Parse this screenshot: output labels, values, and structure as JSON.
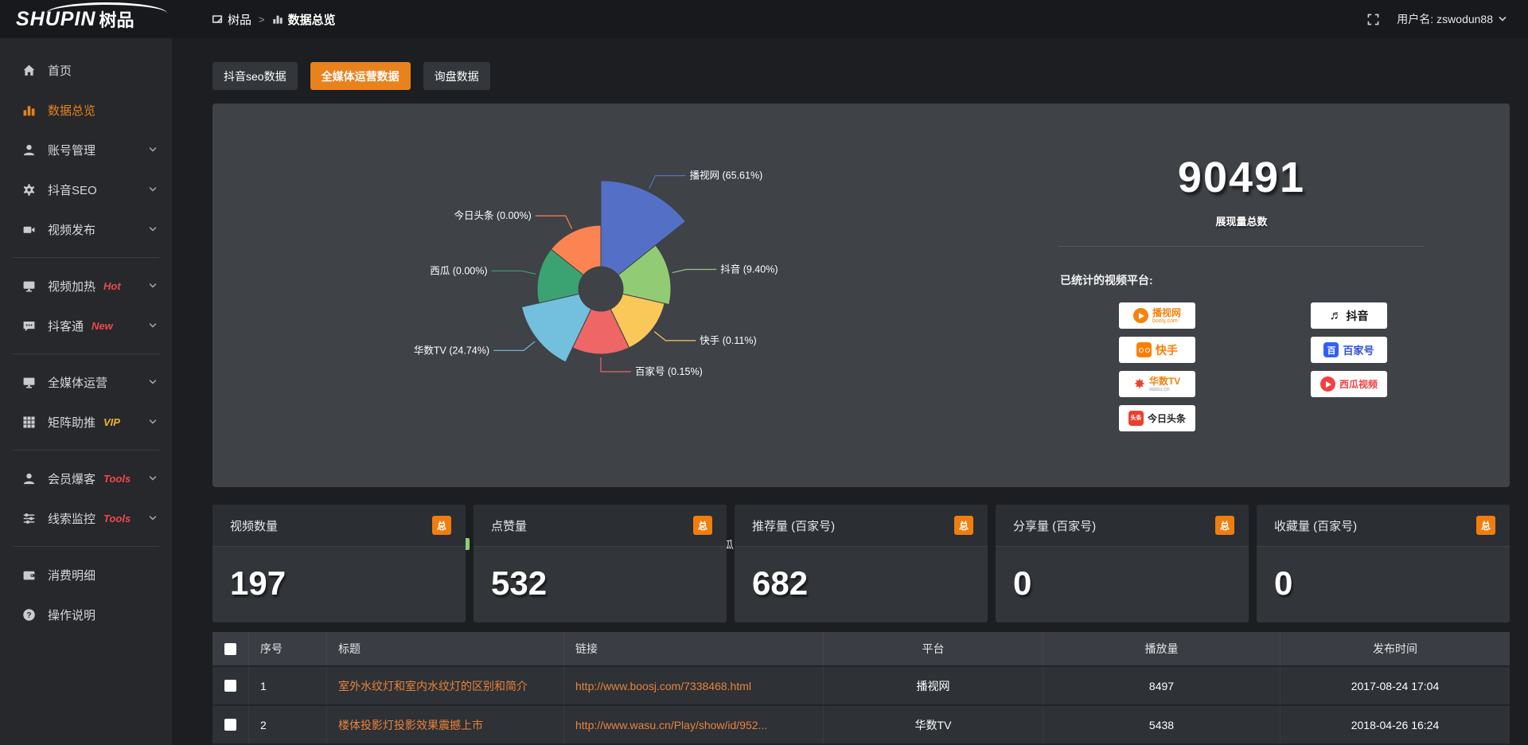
{
  "header": {
    "logo": {
      "brand": "SHUPIN",
      "brand_cn": "树品"
    },
    "breadcrumb": {
      "root": "树品",
      "separator": ">",
      "current": "数据总览"
    },
    "user": {
      "prefix": "用户名: ",
      "name": "zswodun88"
    }
  },
  "sidebar": {
    "items": [
      {
        "icon": "home",
        "label": "首页"
      },
      {
        "icon": "bar-chart",
        "label": "数据总览",
        "active": true
      },
      {
        "icon": "user",
        "label": "账号管理",
        "chevron": true
      },
      {
        "icon": "gear",
        "label": "抖音SEO",
        "chevron": true
      },
      {
        "icon": "video",
        "label": "视频发布",
        "chevron": true
      },
      {
        "divider": true
      },
      {
        "icon": "monitor",
        "label": "视频加热",
        "badge": "Hot",
        "badge_color": "#f04848",
        "chevron": true
      },
      {
        "icon": "chat",
        "label": "抖客通",
        "badge": "New",
        "badge_color": "#f04848",
        "chevron": true
      },
      {
        "divider": true
      },
      {
        "icon": "monitor",
        "label": "全媒体运营",
        "chevron": true
      },
      {
        "icon": "grid",
        "label": "矩阵助推",
        "badge": "VIP",
        "badge_color": "#f0b429",
        "chevron": true
      },
      {
        "divider": true
      },
      {
        "icon": "user",
        "label": "会员爆客",
        "badge": "Tools",
        "badge_color": "#f04848",
        "chevron": true
      },
      {
        "icon": "sliders",
        "label": "线索监控",
        "badge": "Tools",
        "badge_color": "#f04848",
        "chevron": true
      },
      {
        "divider": true
      },
      {
        "icon": "wallet",
        "label": "消费明细"
      },
      {
        "icon": "help",
        "label": "操作说明"
      }
    ]
  },
  "tabs": [
    {
      "label": "抖音seo数据",
      "active": false
    },
    {
      "label": "全媒体运营数据",
      "active": true
    },
    {
      "label": "询盘数据",
      "active": false
    }
  ],
  "chart_data": {
    "type": "pie",
    "variant": "nightingale-rose",
    "unit": "%",
    "label_format": "{name} ({value}%)",
    "legend_position": "bottom",
    "inner_radius": 28,
    "items": [
      {
        "name": "播视网",
        "value": 65.61,
        "color": "#5470c6",
        "radius": 136
      },
      {
        "name": "抖音",
        "value": 9.4,
        "color": "#91cc75",
        "radius": 88
      },
      {
        "name": "快手",
        "value": 0.11,
        "color": "#fac858",
        "radius": 82
      },
      {
        "name": "百家号",
        "value": 0.15,
        "color": "#ee6666",
        "radius": 82
      },
      {
        "name": "华数TV",
        "value": 24.74,
        "color": "#73c0de",
        "radius": 102
      },
      {
        "name": "西瓜",
        "value": 0.0,
        "color": "#3ba272",
        "radius": 80
      },
      {
        "name": "今日头条",
        "value": 0.0,
        "color": "#fc8452",
        "radius": 80
      }
    ]
  },
  "overview": {
    "total": "90491",
    "total_label": "展现量总数",
    "platforms_title": "已统计的视频平台:",
    "platform_badges": [
      {
        "name": "播视网",
        "sub": "boosj.com",
        "icon": "boosj",
        "col": "left",
        "color": "#f5820d"
      },
      {
        "name": "快手",
        "icon": "kuaishou",
        "col": "left",
        "color": "#ff7e00"
      },
      {
        "name": "华数TV",
        "sub": "wasu.cn",
        "icon": "wasu",
        "col": "left",
        "color": "#f5820d"
      },
      {
        "name": "今日头条",
        "icon": "toutiao",
        "col": "left",
        "color": "#222222"
      },
      {
        "name": "抖音",
        "icon": "douyin",
        "col": "right",
        "color": "#111111"
      },
      {
        "name": "百家号",
        "icon": "baijiahao",
        "col": "right",
        "color": "#315efb"
      },
      {
        "name": "西瓜视频",
        "icon": "xigua",
        "col": "right",
        "color": "#f04142"
      }
    ]
  },
  "stat_cards": [
    {
      "label": "视频数量",
      "badge": "总",
      "value": "197"
    },
    {
      "label": "点赞量",
      "badge": "总",
      "value": "532"
    },
    {
      "label": "推荐量 (百家号)",
      "badge": "总",
      "value": "682"
    },
    {
      "label": "分享量 (百家号)",
      "badge": "总",
      "value": "0"
    },
    {
      "label": "收藏量 (百家号)",
      "badge": "总",
      "value": "0"
    }
  ],
  "table": {
    "columns": [
      {
        "key": "check",
        "label": ""
      },
      {
        "key": "no",
        "label": "序号"
      },
      {
        "key": "title",
        "label": "标题"
      },
      {
        "key": "link",
        "label": "链接"
      },
      {
        "key": "platform",
        "label": "平台"
      },
      {
        "key": "plays",
        "label": "播放量"
      },
      {
        "key": "time",
        "label": "发布时间"
      }
    ],
    "rows": [
      {
        "no": "1",
        "title": "室外水纹灯和室内水纹灯的区别和简介",
        "link": "http://www.boosj.com/7338468.html",
        "platform": "播视网",
        "plays": "8497",
        "time": "2017-08-24 17:04"
      },
      {
        "no": "2",
        "title": "楼体投影灯投影效果震撼上市",
        "link": "http://www.wasu.cn/Play/show/id/952...",
        "platform": "华数TV",
        "plays": "5438",
        "time": "2018-04-26 16:24"
      }
    ]
  },
  "colors": {
    "accent_orange": "#e8821c",
    "table_link_orange": "#e8833a",
    "badge_total_bg": "#ef7e0e",
    "panel_bg": "#3f4247",
    "sidebar_bg": "#26282c",
    "topbar_bg": "#17191c"
  }
}
